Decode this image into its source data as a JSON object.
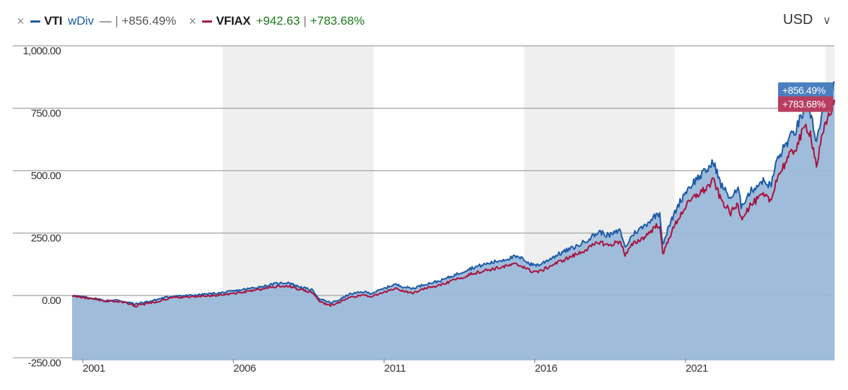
{
  "legend": {
    "series1": {
      "close_icon": "close-icon",
      "ticker": "VTI",
      "qualifier": "wDiv",
      "price": "—",
      "change": "+856.49%",
      "color": "#1c5aa6"
    },
    "series2": {
      "close_icon": "close-icon",
      "ticker": "VFIAX",
      "price": "+942.63",
      "change": "+783.68%",
      "color": "#a8123e"
    },
    "separator": "|",
    "close_glyph": "×"
  },
  "currency": {
    "label": "USD",
    "chevron_icon": "chevron-down-icon",
    "chevron_glyph": "∨"
  },
  "colors": {
    "area_fill": "#9ab8d9",
    "vti_line": "#1c5aa6",
    "vfiax_line": "#a8123e",
    "band": "#efefef",
    "grid": "#a0a0a0",
    "vti_badge": "#4a80bf",
    "vfiax_badge": "#b83e5f"
  },
  "chart_data": {
    "type": "line",
    "title": "",
    "xlabel": "",
    "ylabel": "",
    "xlim": [
      2000.6,
      2025.9
    ],
    "ylim": [
      -260,
      1000
    ],
    "y_ticks": [
      {
        "value": 1000,
        "label": "1,000.00"
      },
      {
        "value": 750,
        "label": "750.00"
      },
      {
        "value": 500,
        "label": "500.00"
      },
      {
        "value": 250,
        "label": "250.00"
      },
      {
        "value": 0,
        "label": "0.00"
      },
      {
        "value": -250,
        "label": "-250.00"
      }
    ],
    "x_ticks": [
      {
        "value": 2001,
        "label": "2001"
      },
      {
        "value": 2006,
        "label": "2006"
      },
      {
        "value": 2011,
        "label": "2011"
      },
      {
        "value": 2016,
        "label": "2016"
      },
      {
        "value": 2021,
        "label": "2021"
      }
    ],
    "shaded_bands": [
      [
        2005.6,
        2010.6
      ],
      [
        2015.6,
        2020.6
      ],
      [
        2025.6,
        2025.9
      ]
    ],
    "grid": true,
    "area_under": "VTI",
    "series": [
      {
        "name": "VTI",
        "unit": "%",
        "end_label": "+856.49%",
        "points": [
          [
            2000.6,
            0
          ],
          [
            2000.9,
            -5
          ],
          [
            2001.2,
            -10
          ],
          [
            2001.5,
            -15
          ],
          [
            2001.7,
            -22
          ],
          [
            2002.0,
            -18
          ],
          [
            2002.4,
            -25
          ],
          [
            2002.7,
            -35
          ],
          [
            2002.9,
            -30
          ],
          [
            2003.3,
            -20
          ],
          [
            2003.6,
            -10
          ],
          [
            2004.0,
            -2
          ],
          [
            2004.5,
            0
          ],
          [
            2005.0,
            5
          ],
          [
            2005.5,
            10
          ],
          [
            2006.0,
            18
          ],
          [
            2006.5,
            28
          ],
          [
            2007.0,
            38
          ],
          [
            2007.4,
            48
          ],
          [
            2007.8,
            52
          ],
          [
            2008.0,
            40
          ],
          [
            2008.3,
            30
          ],
          [
            2008.6,
            20
          ],
          [
            2008.8,
            -15
          ],
          [
            2009.0,
            -22
          ],
          [
            2009.2,
            -30
          ],
          [
            2009.5,
            -15
          ],
          [
            2009.8,
            5
          ],
          [
            2010.3,
            15
          ],
          [
            2010.5,
            8
          ],
          [
            2010.9,
            25
          ],
          [
            2011.3,
            45
          ],
          [
            2011.6,
            35
          ],
          [
            2011.9,
            28
          ],
          [
            2012.3,
            45
          ],
          [
            2012.8,
            58
          ],
          [
            2013.3,
            82
          ],
          [
            2013.8,
            108
          ],
          [
            2014.3,
            125
          ],
          [
            2014.8,
            140
          ],
          [
            2015.3,
            155
          ],
          [
            2015.6,
            145
          ],
          [
            2015.8,
            125
          ],
          [
            2016.1,
            122
          ],
          [
            2016.5,
            150
          ],
          [
            2016.9,
            175
          ],
          [
            2017.4,
            200
          ],
          [
            2017.9,
            240
          ],
          [
            2018.1,
            255
          ],
          [
            2018.4,
            240
          ],
          [
            2018.8,
            260
          ],
          [
            2018.95,
            190
          ],
          [
            2019.2,
            245
          ],
          [
            2019.6,
            280
          ],
          [
            2019.95,
            320
          ],
          [
            2020.1,
            330
          ],
          [
            2020.2,
            205
          ],
          [
            2020.4,
            275
          ],
          [
            2020.7,
            360
          ],
          [
            2020.95,
            415
          ],
          [
            2021.3,
            465
          ],
          [
            2021.6,
            495
          ],
          [
            2021.9,
            535
          ],
          [
            2022.1,
            450
          ],
          [
            2022.45,
            390
          ],
          [
            2022.7,
            425
          ],
          [
            2022.8,
            360
          ],
          [
            2023.1,
            415
          ],
          [
            2023.5,
            460
          ],
          [
            2023.8,
            440
          ],
          [
            2023.95,
            530
          ],
          [
            2024.3,
            610
          ],
          [
            2024.6,
            660
          ],
          [
            2024.95,
            760
          ],
          [
            2025.1,
            730
          ],
          [
            2025.3,
            620
          ],
          [
            2025.5,
            720
          ],
          [
            2025.7,
            800
          ],
          [
            2025.9,
            856.49
          ]
        ]
      },
      {
        "name": "VFIAX",
        "unit": "%",
        "end_label": "+783.68%",
        "points": [
          [
            2000.6,
            0
          ],
          [
            2000.9,
            -8
          ],
          [
            2001.2,
            -13
          ],
          [
            2001.5,
            -18
          ],
          [
            2001.7,
            -25
          ],
          [
            2002.0,
            -22
          ],
          [
            2002.4,
            -30
          ],
          [
            2002.7,
            -42
          ],
          [
            2002.9,
            -36
          ],
          [
            2003.3,
            -27
          ],
          [
            2003.6,
            -18
          ],
          [
            2004.0,
            -8
          ],
          [
            2004.5,
            -6
          ],
          [
            2005.0,
            -3
          ],
          [
            2005.5,
            2
          ],
          [
            2006.0,
            8
          ],
          [
            2006.5,
            17
          ],
          [
            2007.0,
            27
          ],
          [
            2007.4,
            36
          ],
          [
            2007.8,
            38
          ],
          [
            2008.0,
            28
          ],
          [
            2008.3,
            20
          ],
          [
            2008.6,
            10
          ],
          [
            2008.8,
            -25
          ],
          [
            2009.0,
            -32
          ],
          [
            2009.2,
            -40
          ],
          [
            2009.5,
            -25
          ],
          [
            2009.8,
            -8
          ],
          [
            2010.3,
            2
          ],
          [
            2010.5,
            -5
          ],
          [
            2010.9,
            10
          ],
          [
            2011.3,
            28
          ],
          [
            2011.6,
            18
          ],
          [
            2011.9,
            10
          ],
          [
            2012.3,
            28
          ],
          [
            2012.8,
            40
          ],
          [
            2013.3,
            62
          ],
          [
            2013.8,
            85
          ],
          [
            2014.3,
            100
          ],
          [
            2014.8,
            112
          ],
          [
            2015.3,
            125
          ],
          [
            2015.6,
            115
          ],
          [
            2015.8,
            98
          ],
          [
            2016.1,
            95
          ],
          [
            2016.5,
            120
          ],
          [
            2016.9,
            142
          ],
          [
            2017.4,
            168
          ],
          [
            2017.9,
            200
          ],
          [
            2018.1,
            215
          ],
          [
            2018.4,
            200
          ],
          [
            2018.8,
            218
          ],
          [
            2018.95,
            160
          ],
          [
            2019.2,
            205
          ],
          [
            2019.6,
            235
          ],
          [
            2019.95,
            275
          ],
          [
            2020.1,
            285
          ],
          [
            2020.2,
            160
          ],
          [
            2020.4,
            230
          ],
          [
            2020.7,
            305
          ],
          [
            2020.95,
            355
          ],
          [
            2021.3,
            400
          ],
          [
            2021.6,
            425
          ],
          [
            2021.9,
            460
          ],
          [
            2022.1,
            390
          ],
          [
            2022.45,
            330
          ],
          [
            2022.7,
            365
          ],
          [
            2022.8,
            310
          ],
          [
            2023.1,
            360
          ],
          [
            2023.5,
            400
          ],
          [
            2023.8,
            380
          ],
          [
            2023.95,
            460
          ],
          [
            2024.3,
            540
          ],
          [
            2024.6,
            590
          ],
          [
            2024.95,
            680
          ],
          [
            2025.1,
            650
          ],
          [
            2025.3,
            520
          ],
          [
            2025.5,
            640
          ],
          [
            2025.7,
            720
          ],
          [
            2025.9,
            783.68
          ]
        ]
      }
    ]
  }
}
